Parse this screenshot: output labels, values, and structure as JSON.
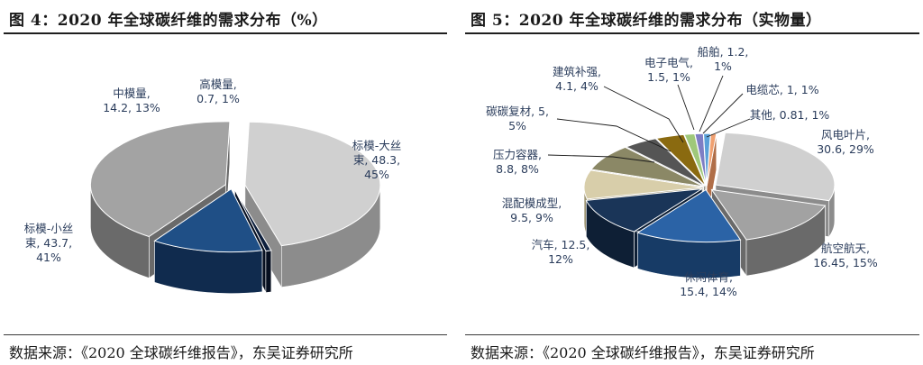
{
  "chart_data": [
    {
      "type": "pie",
      "title": "图 4：2020 年全球碳纤维的需求分布（%）",
      "source": "数据来源：《2020 全球碳纤维报告》，东吴证券研究所",
      "slices": [
        {
          "label": "标模-大丝束",
          "value": 48.3,
          "percent": "45%",
          "color": "#d0d0d0",
          "side": "#8c8c8c"
        },
        {
          "label": "高模量",
          "value": 0.7,
          "percent": "1%",
          "color": "#0d1f3c",
          "side": "#060f20"
        },
        {
          "label": "中模量",
          "value": 14.2,
          "percent": "13%",
          "color": "#1f4f86",
          "side": "#102b4e"
        },
        {
          "label": "标模-小丝束",
          "value": 43.7,
          "percent": "41%",
          "color": "#a3a3a3",
          "side": "#6a6a6a"
        }
      ],
      "labels": [
        {
          "name": "label-large-tow",
          "lines": [
            "标模-大丝",
            "束, 48.3,",
            "45%"
          ]
        },
        {
          "name": "label-high-modulus",
          "lines": [
            "高模量,",
            "0.7, 1%"
          ]
        },
        {
          "name": "label-mid-modulus",
          "lines": [
            "中模量,",
            "14.2, 13%"
          ]
        },
        {
          "name": "label-small-tow",
          "lines": [
            "标模-小丝",
            "束, 43.7,",
            "41%"
          ]
        }
      ]
    },
    {
      "type": "pie",
      "title": "图 5：2020 年全球碳纤维的需求分布（实物量）",
      "source": "数据来源：《2020 全球碳纤维报告》，东吴证券研究所",
      "slices": [
        {
          "label": "风电叶片",
          "value": 30.6,
          "percent": "29%",
          "color": "#d0d0d0",
          "side": "#8c8c8c"
        },
        {
          "label": "航空航天",
          "value": 16.45,
          "percent": "15%",
          "color": "#a2a2a2",
          "side": "#6a6a6a"
        },
        {
          "label": "休闲体育",
          "value": 15.4,
          "percent": "14%",
          "color": "#2b63a6",
          "side": "#173b66"
        },
        {
          "label": "汽车",
          "value": 12.5,
          "percent": "12%",
          "color": "#1a3558",
          "side": "#0e1f35"
        },
        {
          "label": "混配模成型",
          "value": 9.5,
          "percent": "9%",
          "color": "#d8ceaa",
          "side": "#9e9573"
        },
        {
          "label": "压力容器",
          "value": 8.8,
          "percent": "8%",
          "color": "#8b8866",
          "side": "#5d5b43"
        },
        {
          "label": "碳碳复材",
          "value": 5,
          "percent": "5%",
          "color": "#555555",
          "side": "#333333"
        },
        {
          "label": "建筑补强",
          "value": 4.1,
          "percent": "4%",
          "color": "#8a6a10",
          "side": "#5a450a"
        },
        {
          "label": "电子电气",
          "value": 1.5,
          "percent": "1%",
          "color": "#9fc87a",
          "side": "#6a8c4f"
        },
        {
          "label": "船舶",
          "value": 1.2,
          "percent": "1%",
          "color": "#7e7ec4",
          "side": "#555590"
        },
        {
          "label": "电缆芯",
          "value": 1,
          "percent": "1%",
          "color": "#5aa0d8",
          "side": "#3b6f99"
        },
        {
          "label": "其他",
          "value": 0.81,
          "percent": "1%",
          "color": "#f0a070",
          "side": "#b06e48"
        }
      ],
      "labels": [
        {
          "name": "label-wind-blade",
          "lines": [
            "风电叶片,",
            "30.6, 29%"
          ]
        },
        {
          "name": "label-aerospace",
          "lines": [
            "航空航天,",
            "16.45, 15%"
          ]
        },
        {
          "name": "label-sports",
          "lines": [
            "休闲体育,",
            "15.4, 14%"
          ]
        },
        {
          "name": "label-auto",
          "lines": [
            "汽车, 12.5,",
            "12%"
          ]
        },
        {
          "name": "label-molding",
          "lines": [
            "混配模成型,",
            "9.5, 9%"
          ]
        },
        {
          "name": "label-pressure-vessel",
          "lines": [
            "压力容器,",
            "8.8, 8%"
          ]
        },
        {
          "name": "label-cc-composite",
          "lines": [
            "碳碳复材, 5,",
            "5%"
          ]
        },
        {
          "name": "label-construction",
          "lines": [
            "建筑补强,",
            "4.1, 4%"
          ]
        },
        {
          "name": "label-electronics",
          "lines": [
            "电子电气,",
            "1.5, 1%"
          ]
        },
        {
          "name": "label-ship",
          "lines": [
            "船舶, 1.2,",
            "1%"
          ]
        },
        {
          "name": "label-cable-core",
          "lines": [
            "电缆芯, 1, 1%"
          ]
        },
        {
          "name": "label-other",
          "lines": [
            "其他, 0.81, 1%"
          ]
        }
      ]
    }
  ]
}
